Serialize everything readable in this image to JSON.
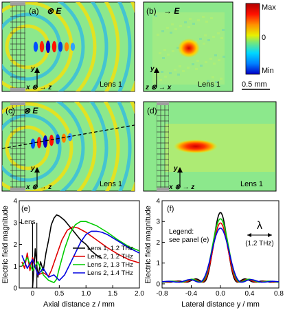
{
  "panels": {
    "a": {
      "label": "(a)",
      "field": "⊗ E",
      "axes": "x ⊗ → z",
      "up": "y",
      "lens": "Lens 1"
    },
    "b": {
      "label": "(b)",
      "field": "→ E",
      "axes": "z ⊗ → x",
      "up": "y",
      "lens": "Lens 1"
    },
    "c": {
      "label": "(c)",
      "field": "⊗ E",
      "axes": "x ⊗ → z",
      "up": "y",
      "lens": "Lens 1"
    },
    "d": {
      "label": "(d)",
      "axes": "x ⊗ → z",
      "up": "y",
      "lens": "Lens 1"
    }
  },
  "colorbar": {
    "max": "Max",
    "zero": "0",
    "min": "Min",
    "scalebar": "0.5 mm",
    "colors": [
      "#0000c8",
      "#0080ff",
      "#00d8ff",
      "#78e878",
      "#e8f000",
      "#ff9000",
      "#ff1000",
      "#b00000"
    ]
  },
  "chart_data": [
    {
      "type": "line",
      "panel": "(e)",
      "xlabel": "Axial distance z / mm",
      "ylabel": "Electric field magnitude",
      "xlim": [
        -0.25,
        2.0
      ],
      "ylim": [
        0,
        4
      ],
      "xticks": [
        "0",
        "0.5",
        "1.0",
        "1.5",
        "2.0"
      ],
      "yticks": [
        "0",
        "1",
        "2",
        "3",
        "4"
      ],
      "annotation": "Lens",
      "series": [
        {
          "name": "Lens 1, 1.2 THz",
          "color": "#000000",
          "x": [
            0.0,
            0.05,
            0.1,
            0.15,
            0.2,
            0.25,
            0.3,
            0.35,
            0.4,
            0.45,
            0.5,
            0.55,
            0.6,
            0.7,
            0.8,
            0.9,
            1.0,
            1.1,
            1.2,
            1.3
          ],
          "y": [
            0.0,
            1.8,
            0.5,
            1.2,
            0.8,
            1.6,
            2.2,
            2.9,
            3.2,
            3.35,
            3.3,
            3.2,
            3.1,
            2.8,
            2.5,
            2.2,
            2.0,
            1.7,
            1.5,
            1.35
          ]
        },
        {
          "name": "Lens 2, 1.2 THz",
          "color": "#e00000",
          "x": [
            -0.2,
            -0.15,
            -0.1,
            -0.05,
            0.0,
            0.1,
            0.2,
            0.3,
            0.35,
            0.45,
            0.55,
            0.65,
            0.75,
            0.85,
            1.0,
            1.2,
            1.4,
            1.6,
            1.8,
            2.0
          ],
          "y": [
            1.2,
            0.9,
            1.6,
            0.8,
            1.4,
            0.6,
            0.7,
            0.55,
            0.8,
            1.5,
            2.2,
            2.65,
            2.8,
            2.75,
            2.55,
            2.2,
            1.85,
            1.55,
            1.3,
            1.15
          ]
        },
        {
          "name": "Lens 2, 1.3 THz",
          "color": "#00cc00",
          "x": [
            -0.2,
            -0.1,
            0.0,
            0.1,
            0.2,
            0.3,
            0.4,
            0.45,
            0.5,
            0.6,
            0.7,
            0.8,
            0.9,
            1.0,
            1.2,
            1.4,
            1.6,
            1.8,
            2.0
          ],
          "y": [
            1.0,
            1.4,
            0.8,
            1.2,
            0.6,
            0.35,
            0.25,
            0.4,
            0.9,
            1.8,
            2.5,
            2.9,
            3.05,
            3.05,
            2.85,
            2.55,
            2.2,
            1.9,
            1.7
          ]
        },
        {
          "name": "Lens 2, 1.4 THz",
          "color": "#0000e0",
          "x": [
            -0.2,
            -0.1,
            0.0,
            0.1,
            0.2,
            0.3,
            0.4,
            0.5,
            0.6,
            0.7,
            0.8,
            0.9,
            1.0,
            1.1,
            1.2,
            1.3,
            1.4,
            1.6,
            1.8,
            2.0
          ],
          "y": [
            1.5,
            0.9,
            1.3,
            0.6,
            0.9,
            0.5,
            0.6,
            0.35,
            0.6,
            1.1,
            1.6,
            2.1,
            2.45,
            2.6,
            2.6,
            2.55,
            2.45,
            2.15,
            1.85,
            1.6
          ]
        }
      ]
    },
    {
      "type": "line",
      "panel": "(f)",
      "xlabel": "Lateral distance y / mm",
      "ylabel": "Electric field magnitude",
      "xlim": [
        -0.8,
        0.8
      ],
      "ylim": [
        -0.2,
        4
      ],
      "xticks": [
        "-0.8",
        "-0.4",
        "0.0",
        "0.4",
        "0.8"
      ],
      "yticks": [
        "0",
        "1",
        "2",
        "3",
        "4"
      ],
      "legend_note": [
        "Legend:",
        "see panel (e)"
      ],
      "wavelength": {
        "symbol": "λ",
        "label": "(1.2 THz)"
      },
      "peaks": [
        3.35,
        2.85,
        3.05,
        2.6
      ],
      "series_colors": [
        "#000000",
        "#e00000",
        "#00cc00",
        "#0000e0"
      ]
    }
  ]
}
